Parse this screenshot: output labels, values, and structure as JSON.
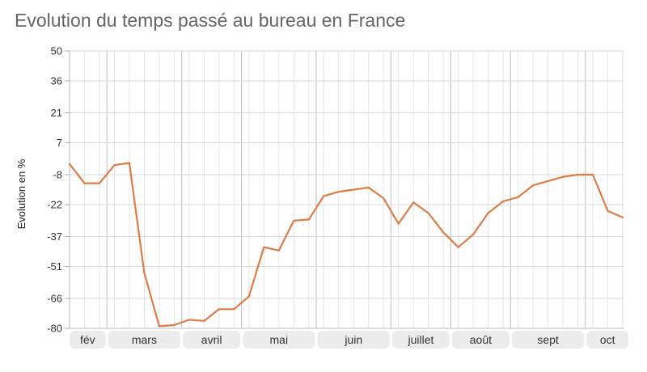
{
  "chart_data": {
    "type": "line",
    "title": "Evolution du temps passé au bureau en France",
    "ylabel": "Evolution en %",
    "xlabel": "",
    "yticks": [
      50,
      36,
      21,
      7,
      -8,
      -22,
      -37,
      -51,
      -66,
      -80
    ],
    "ylim": [
      -80,
      50
    ],
    "grid": true,
    "month_labels": [
      "fév",
      "mars",
      "avril",
      "mai",
      "juin",
      "juillet",
      "août",
      "sept",
      "oct"
    ],
    "month_index_ranges": [
      [
        0,
        2
      ],
      [
        3,
        7
      ],
      [
        8,
        11
      ],
      [
        12,
        16
      ],
      [
        17,
        21
      ],
      [
        22,
        25
      ],
      [
        26,
        29
      ],
      [
        30,
        34
      ],
      [
        35,
        37
      ]
    ],
    "series": [
      {
        "color": "#e07b45",
        "values": [
          -3,
          -12,
          -12,
          -3.5,
          -2.5,
          -54,
          -79,
          -78.5,
          -76,
          -76.5,
          -71,
          -71,
          -65,
          -42,
          -43.5,
          -29.5,
          -29,
          -18,
          -16,
          -15,
          -14,
          -19,
          -31,
          -21,
          -26,
          -35,
          -42,
          -36,
          -26,
          -20.5,
          -18.5,
          -13,
          -11,
          -9,
          -8,
          -8,
          -25,
          -28
        ]
      }
    ]
  }
}
